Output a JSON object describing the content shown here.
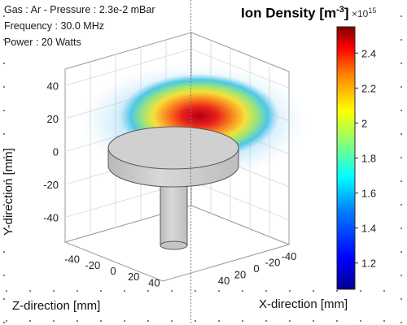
{
  "info": {
    "gas_pressure": "Gas : Ar - Pressure : 2.3e-2 mBar",
    "frequency": "Frequency : 30.0 MHz",
    "power": "Power : 20 Watts"
  },
  "colorbar": {
    "title": "Ion Density [m",
    "title_exp": "-3",
    "title_close": "]",
    "scale_base": "×10",
    "scale_exp": "15",
    "range": [
      1.05,
      2.55
    ],
    "ticks": [
      "1.2",
      "1.4",
      "1.6",
      "1.8",
      "2",
      "2.2",
      "2.4"
    ],
    "colormap": "jet"
  },
  "chart_data": {
    "type": "heatmap",
    "title": "Ion Density [m-3] ×10^15",
    "y_axis": {
      "label": "Y-direction [mm]",
      "ticks": [
        "40",
        "20",
        "0",
        "-20",
        "-40"
      ],
      "range": [
        -55,
        50
      ]
    },
    "z_axis": {
      "label": "Z-direction [mm]",
      "ticks": [
        "-40",
        "-20",
        "0",
        "20",
        "40"
      ],
      "range": [
        -50,
        50
      ]
    },
    "x_axis": {
      "label": "X-direction [mm]",
      "ticks": [
        "-40",
        "-20",
        "0",
        "20",
        "40"
      ],
      "range": [
        -50,
        50
      ]
    },
    "grid": true,
    "values": {
      "min": 1.05,
      "max": 2.5,
      "peak_y": 25,
      "unit_multiplier": "1e15"
    }
  }
}
